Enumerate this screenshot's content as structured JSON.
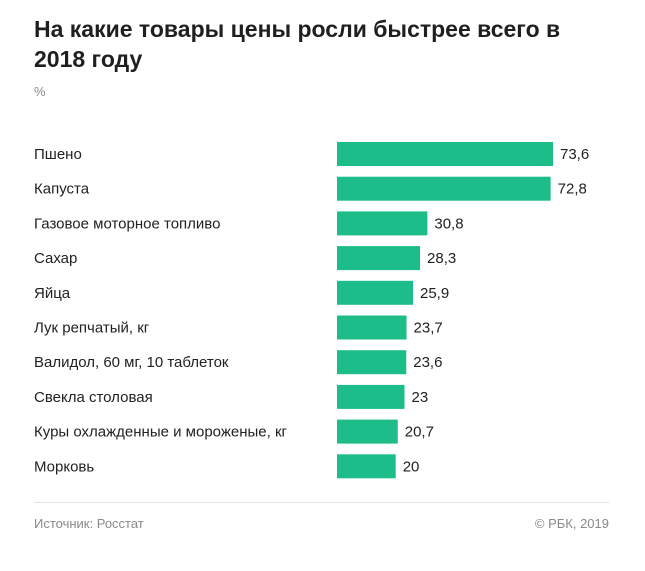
{
  "header": {
    "title": "На какие товары цены росли быстрее всего в 2018 году",
    "unit": "%"
  },
  "footer": {
    "source": "Источник: Росстат",
    "copyright": "© РБК, 2019"
  },
  "colors": {
    "bar": "#1dbd8a",
    "label": "#222222",
    "value": "#222222"
  },
  "chart_data": {
    "type": "bar",
    "orientation": "horizontal",
    "title": "На какие товары цены росли быстрее всего в 2018 году",
    "subtitle": "%",
    "xlabel": "",
    "ylabel": "",
    "xlim": [
      0,
      73.6
    ],
    "grid": false,
    "legend": "none",
    "categories": [
      "Пшено",
      "Капуста",
      "Газовое моторное топливо",
      "Сахар",
      "Яйца",
      "Лук репчатый, кг",
      "Валидол, 60 мг, 10 таблеток",
      "Свекла столовая",
      "Куры охлажденные и мороженые, кг",
      "Морковь"
    ],
    "values": [
      73.6,
      72.8,
      30.8,
      28.3,
      25.9,
      23.7,
      23.6,
      23,
      20.7,
      20
    ],
    "value_labels": [
      "73,6",
      "72,8",
      "30,8",
      "28,3",
      "25,9",
      "23,7",
      "23,6",
      "23",
      "20,7",
      "20"
    ]
  }
}
